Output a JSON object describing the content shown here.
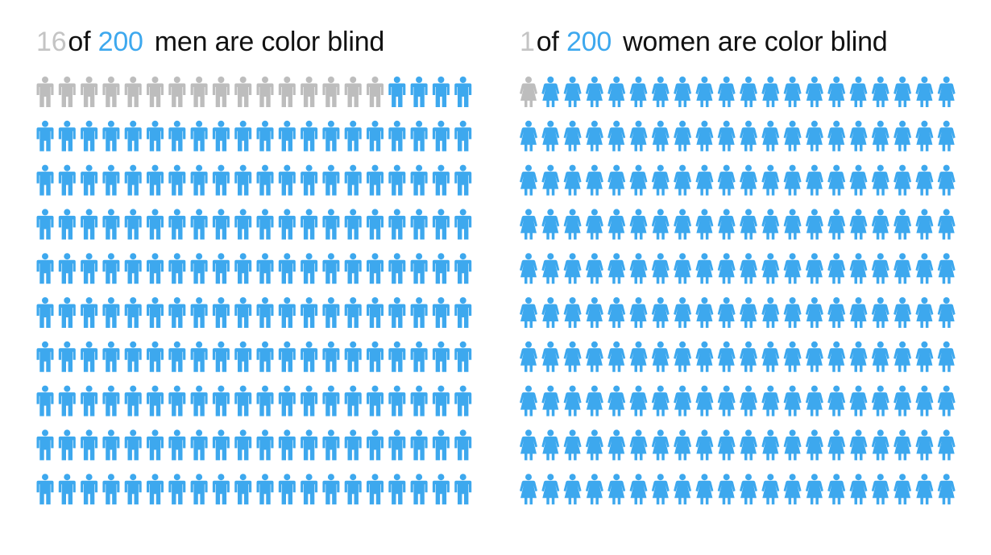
{
  "chart_data": [
    {
      "type": "pictogram",
      "title": {
        "count": "16",
        "of": "of",
        "total": "200",
        "rest": "men are color blind"
      },
      "highlighted": 16,
      "total": 200,
      "rows": 10,
      "columns": 20,
      "icon": "man-icon",
      "highlight_color": "#bdbdbd",
      "base_color": "#3da8ee"
    },
    {
      "type": "pictogram",
      "title": {
        "count": "1",
        "of": "of",
        "total": "200",
        "rest": "women are color blind"
      },
      "highlighted": 1,
      "total": 200,
      "rows": 10,
      "columns": 20,
      "icon": "woman-icon",
      "highlight_color": "#bdbdbd",
      "base_color": "#3da8ee"
    }
  ]
}
